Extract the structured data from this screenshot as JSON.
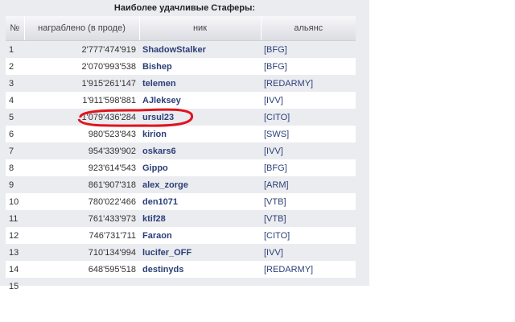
{
  "title": "Наиболее удачливые Стаферы:",
  "columns": [
    "№",
    "награблено (в проде)",
    "ник",
    "альянс"
  ],
  "rows": [
    {
      "n": "1",
      "amount": "2'777'474'919",
      "nick": "ShadowStalker",
      "alliance": "[BFG]"
    },
    {
      "n": "2",
      "amount": "2'070'993'538",
      "nick": "Bishep",
      "alliance": "[BFG]"
    },
    {
      "n": "3",
      "amount": "1'915'261'147",
      "nick": "telemen",
      "alliance": "[REDARMY]"
    },
    {
      "n": "4",
      "amount": "1'911'598'881",
      "nick": "AJleksey",
      "alliance": "[IVV]"
    },
    {
      "n": "5",
      "amount": "1'079'436'284",
      "nick": "ursul23",
      "alliance": "[CITO]"
    },
    {
      "n": "6",
      "amount": "980'523'843",
      "nick": "kirion",
      "alliance": "[SWS]"
    },
    {
      "n": "7",
      "amount": "954'339'902",
      "nick": "oskars6",
      "alliance": "[IVV]"
    },
    {
      "n": "8",
      "amount": "923'614'543",
      "nick": "Gippo",
      "alliance": "[BFG]"
    },
    {
      "n": "9",
      "amount": "861'907'318",
      "nick": "alex_zorge",
      "alliance": "[ARM]"
    },
    {
      "n": "10",
      "amount": "780'022'466",
      "nick": "den1071",
      "alliance": "[VTB]"
    },
    {
      "n": "11",
      "amount": "761'433'973",
      "nick": "ktif28",
      "alliance": "[VTB]"
    },
    {
      "n": "12",
      "amount": "746'731'711",
      "nick": "Faraon",
      "alliance": "[CITO]"
    },
    {
      "n": "13",
      "amount": "710'134'994",
      "nick": "lucifer_OFF",
      "alliance": "[IVV]"
    },
    {
      "n": "14",
      "amount": "648'595'518",
      "nick": "destinyds",
      "alliance": "[REDARMY]"
    },
    {
      "n": "15",
      "amount": "",
      "nick": "",
      "alliance": ""
    }
  ],
  "highlight": {
    "row": 5,
    "color": "#e0141e"
  },
  "colors": {
    "link": "#2b3f78",
    "panel": "#ebecf0"
  }
}
